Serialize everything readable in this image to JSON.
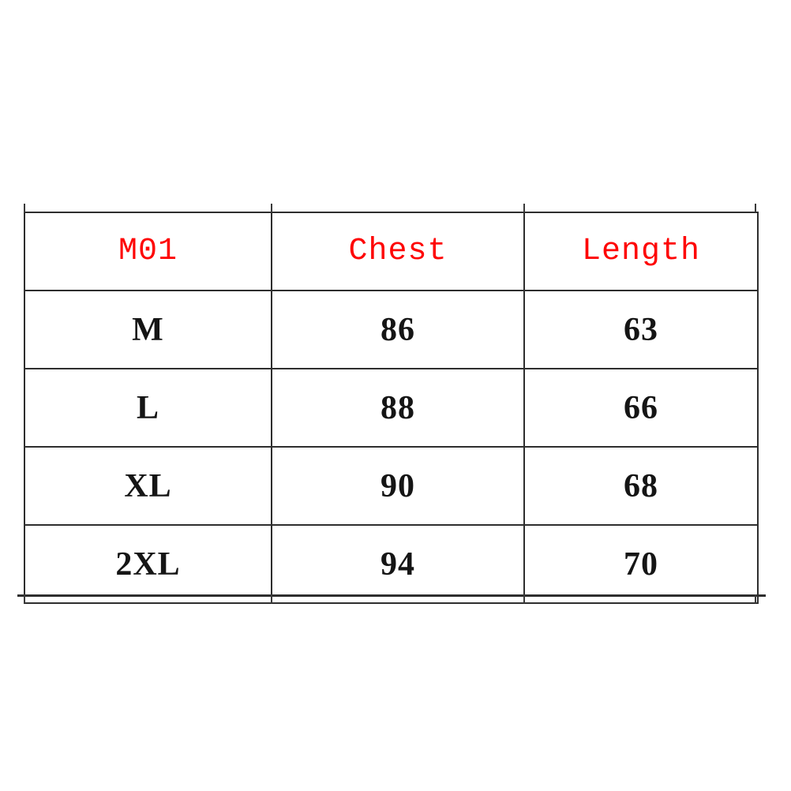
{
  "colors": {
    "header_text": "#fe0505",
    "body_text": "#151515",
    "grid_border": "#2e2e2e",
    "background": "#ffffff"
  },
  "table": {
    "header": {
      "model": "M01",
      "chest": "Chest",
      "length": "Length"
    },
    "rows": [
      {
        "size": "M",
        "chest": "86",
        "length": "63"
      },
      {
        "size": "L",
        "chest": "88",
        "length": "66"
      },
      {
        "size": "XL",
        "chest": "90",
        "length": "68"
      },
      {
        "size": "2XL",
        "chest": "94",
        "length": "70"
      }
    ]
  },
  "chart_data": {
    "type": "table",
    "columns": [
      "M01",
      "Chest",
      "Length"
    ],
    "rows": [
      [
        "M",
        86,
        63
      ],
      [
        "L",
        88,
        66
      ],
      [
        "XL",
        90,
        68
      ],
      [
        "2XL",
        94,
        70
      ]
    ],
    "layout": "size chart; header text red, data text black, centered cells, grid on"
  }
}
